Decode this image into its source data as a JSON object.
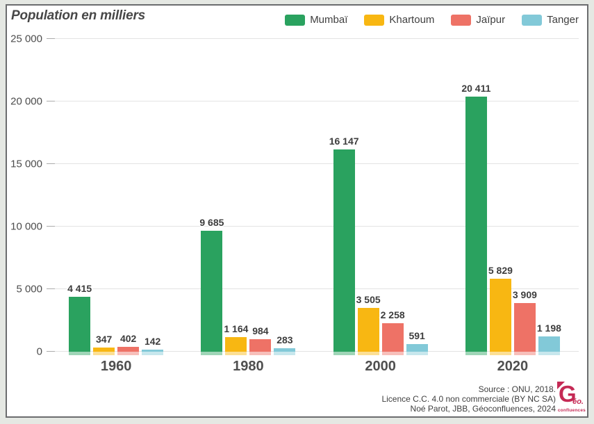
{
  "header": {
    "title": "Population en milliers"
  },
  "chart_data": {
    "type": "bar",
    "title": "Population en milliers",
    "categories": [
      "1960",
      "1980",
      "2000",
      "2020"
    ],
    "series": [
      {
        "name": "Mumbaï",
        "color": "#2aa25f",
        "values": [
          4415,
          9685,
          16147,
          20411
        ],
        "labels": [
          "4 415",
          "9 685",
          "16 147",
          "20 411"
        ]
      },
      {
        "name": "Khartoum",
        "color": "#f8b712",
        "values": [
          347,
          1164,
          3505,
          5829
        ],
        "labels": [
          "347",
          "1 164",
          "3 505",
          "5 829"
        ]
      },
      {
        "name": "Jaïpur",
        "color": "#ee7266",
        "values": [
          402,
          984,
          2258,
          3909
        ],
        "labels": [
          "402",
          "984",
          "2 258",
          "3 909"
        ]
      },
      {
        "name": "Tanger",
        "color": "#82c9d8",
        "values": [
          142,
          283,
          591,
          1198
        ],
        "labels": [
          "142",
          "283",
          "591",
          "1 198"
        ]
      }
    ],
    "xlabel": "",
    "ylabel": "Population en milliers",
    "ylim": [
      0,
      25000
    ],
    "yticks": {
      "values": [
        0,
        5000,
        10000,
        15000,
        20000,
        25000
      ],
      "labels": [
        "0",
        "5 000",
        "10 000",
        "15 000",
        "20 000",
        "25 000"
      ]
    },
    "grid": true,
    "legend_position": "top-right"
  },
  "footer": {
    "lines": [
      "Source : ONU, 2018.",
      "Licence C.C. 4.0 non commerciale (BY NC SA)",
      "Noé Parot, JBB, Géoconfluences, 2024"
    ]
  },
  "logo": {
    "g": "G",
    "eo": "éo.",
    "sub": "confluences",
    "color": "#c52a55"
  }
}
